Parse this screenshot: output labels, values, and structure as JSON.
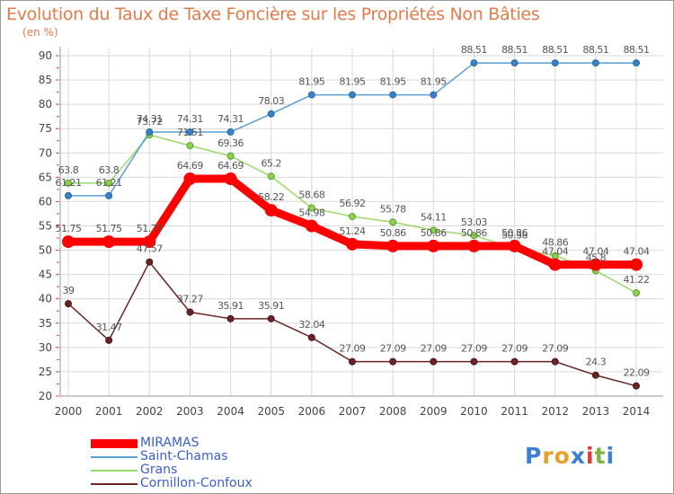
{
  "header": {
    "title": "Evolution du Taux de Taxe Foncière sur les Propriétés Non Bâties",
    "subtitle": "(en %)"
  },
  "logo": {
    "text": "Proxiti",
    "letter_colors": [
      "#3b7fd4",
      "#e8a02c",
      "#e8a02c",
      "#3b7fd4",
      "#d43b3b",
      "#7cb342",
      "#3b7fd4"
    ]
  },
  "chart_data": {
    "type": "line",
    "title": "Evolution du Taux de Taxe Foncière sur les Propriétés Non Bâties",
    "ylabel": "(en %)",
    "xlabel": "",
    "ylim": [
      20,
      90
    ],
    "yticks": [
      20,
      25,
      30,
      35,
      40,
      45,
      50,
      55,
      60,
      65,
      70,
      75,
      80,
      85,
      90
    ],
    "grid": true,
    "legend_position": "bottom-left",
    "x": [
      "2000",
      "2001",
      "2002",
      "2003",
      "2004",
      "2005",
      "2006",
      "2007",
      "2008",
      "2009",
      "2010",
      "2011",
      "2012",
      "2013",
      "2014"
    ],
    "series": [
      {
        "name": "MIRAMAS",
        "color": "#ff0000",
        "values": [
          51.75,
          51.75,
          51.75,
          64.69,
          64.69,
          58.22,
          54.98,
          51.24,
          50.86,
          50.86,
          50.86,
          50.86,
          47.04,
          47.04,
          47.04
        ],
        "labels": [
          "51.75",
          "51.75",
          "51.75",
          "64.69",
          "64.69",
          "58.22",
          "54.98",
          "51.24",
          "50.86",
          "50.86",
          "50.86",
          "50.86",
          "47.04",
          "47.04",
          "47.04"
        ]
      },
      {
        "name": "Saint-Chamas",
        "color": "#5a9fd4",
        "values": [
          61.21,
          61.21,
          74.31,
          74.31,
          74.31,
          78.03,
          81.95,
          81.95,
          81.95,
          81.95,
          88.51,
          88.51,
          88.51,
          88.51,
          88.51
        ],
        "labels": [
          "61.21",
          "61.21",
          "74.31",
          "74.31",
          "74.31",
          "78.03",
          "81.95",
          "81.95",
          "81.95",
          "81.95",
          "88.51",
          "88.51",
          "88.51",
          "88.51",
          "88.51"
        ]
      },
      {
        "name": "Grans",
        "color": "#8fd14f",
        "values": [
          63.8,
          63.8,
          73.72,
          71.51,
          69.36,
          65.2,
          58.68,
          56.92,
          55.78,
          54.11,
          53.03,
          50.38,
          48.86,
          45.8,
          41.22
        ],
        "labels": [
          "63.8",
          "63.8",
          "73.72",
          "71.51",
          "69.36",
          "65.2",
          "58.68",
          "56.92",
          "55.78",
          "54.11",
          "53.03",
          "50.38",
          "48.86",
          "45.8",
          "41.22"
        ]
      },
      {
        "name": "Cornillon-Confoux",
        "color": "#6b2424",
        "values": [
          39,
          31.47,
          47.57,
          37.27,
          35.91,
          35.91,
          32.04,
          27.09,
          27.09,
          27.09,
          27.09,
          27.09,
          27.09,
          24.3,
          22.09
        ],
        "labels": [
          "39",
          "31.47",
          "47.57",
          "37.27",
          "35.91",
          "35.91",
          "32.04",
          "27.09",
          "27.09",
          "27.09",
          "27.09",
          "27.09",
          "27.09",
          "24.3",
          "22.09"
        ]
      }
    ]
  }
}
